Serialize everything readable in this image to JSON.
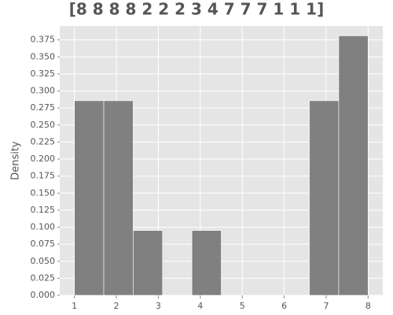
{
  "chart_data": {
    "type": "histogram",
    "title": "[8 8 8 8 2 2 2 3 4 7 7 7 1 1 1]",
    "y_label": "Density",
    "bins": [
      1,
      1.7,
      2.4,
      3.1,
      3.8,
      4.5,
      5.2,
      5.9,
      6.6,
      7.3,
      8
    ],
    "values": [
      0.2857,
      0.2857,
      0.0952,
      0,
      0.0952,
      0,
      0,
      0,
      0.2857,
      0.381
    ],
    "color": "#808080",
    "xlim": [
      0.65,
      8.35
    ],
    "xticks": [
      1,
      2,
      3,
      4,
      5,
      6,
      7,
      8
    ],
    "ylim": [
      0,
      0.4
    ],
    "yticks": [
      {
        "value": 0,
        "label": "0.000"
      },
      {
        "value": 0.025,
        "label": "0.025"
      },
      {
        "value": 0.05,
        "label": "0.050"
      },
      {
        "value": 0.075,
        "label": "0.075"
      },
      {
        "value": 0.1,
        "label": "0.100"
      },
      {
        "value": 0.125,
        "label": "0.125"
      },
      {
        "value": 0.15,
        "label": "0.150"
      },
      {
        "value": 0.175,
        "label": "0.175"
      },
      {
        "value": 0.2,
        "label": "0.200"
      },
      {
        "value": 0.225,
        "label": "0.225"
      },
      {
        "value": 0.25,
        "label": "0.250"
      },
      {
        "value": 0.275,
        "label": "0.275"
      },
      {
        "value": 0.3,
        "label": "0.300"
      },
      {
        "value": 0.325,
        "label": "0.325"
      },
      {
        "value": 0.35,
        "label": "0.350"
      },
      {
        "value": 0.375,
        "label": "0.375"
      }
    ],
    "grid": true
  }
}
